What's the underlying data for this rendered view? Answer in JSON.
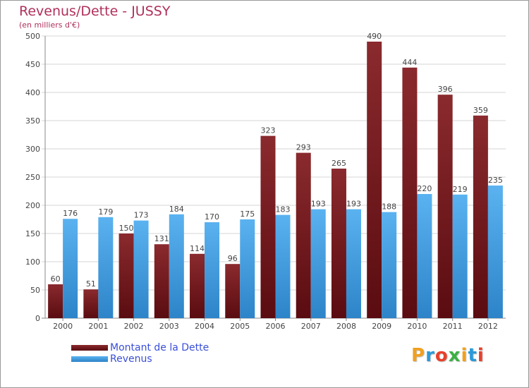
{
  "chart_data": {
    "type": "bar",
    "title": "Revenus/Dette - JUSSY",
    "subtitle": "(en milliers d'€)",
    "categories": [
      "2000",
      "2001",
      "2002",
      "2003",
      "2004",
      "2005",
      "2006",
      "2007",
      "2008",
      "2009",
      "2010",
      "2011",
      "2012"
    ],
    "series": [
      {
        "name": "Montant de la Dette",
        "color": "#7a1a1e",
        "values": [
          60,
          51,
          150,
          131,
          114,
          96,
          323,
          293,
          265,
          490,
          444,
          396,
          359
        ]
      },
      {
        "name": "Revenus",
        "color": "#4aa3e8",
        "values": [
          176,
          179,
          173,
          184,
          170,
          175,
          183,
          193,
          193,
          188,
          220,
          219,
          235
        ]
      }
    ],
    "ylim": [
      0,
      500
    ],
    "yticks": [
      0,
      50,
      100,
      150,
      200,
      250,
      300,
      350,
      400,
      450,
      500
    ],
    "grid": true,
    "legend": "bottom-left"
  },
  "logo": {
    "text": "Proxiti",
    "colors": [
      "#f0a020",
      "#2a9ad8",
      "#e8402a",
      "#3cb043",
      "#f0a020",
      "#2a9ad8",
      "#e8402a"
    ]
  }
}
